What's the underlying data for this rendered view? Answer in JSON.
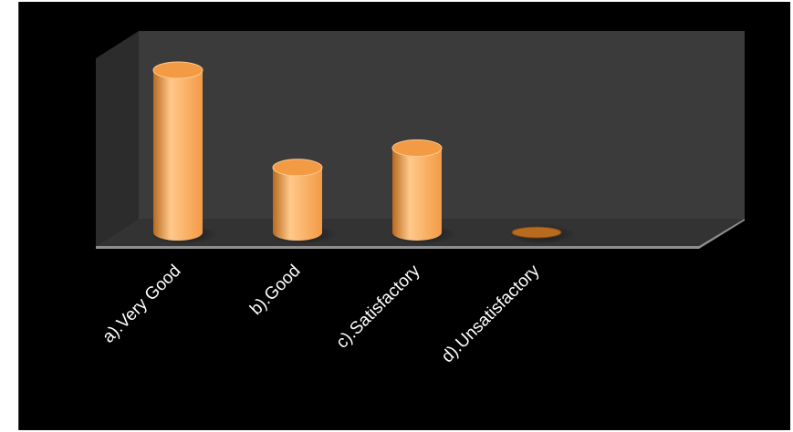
{
  "chart_data": {
    "type": "bar",
    "style": "3d-cylinder",
    "categories": [
      "a).Very Good",
      "b).Good",
      "c).Satisfactory",
      "d).Unsatisfactory"
    ],
    "values": [
      10,
      4,
      5.2,
      0
    ],
    "title": "",
    "xlabel": "",
    "ylabel": "",
    "ylim": [
      0,
      10.5
    ],
    "grid": false,
    "legend": "none",
    "colors": {
      "bar": "#f39a45",
      "bar_highlight": "#ffc98a",
      "bar_shadow": "#b86a1f",
      "background": "#000000",
      "back_wall": "#3b3b3b",
      "side_wall": "#2c2c2c",
      "floor": "#333333",
      "floor_edge": "#8f8f8f"
    }
  }
}
